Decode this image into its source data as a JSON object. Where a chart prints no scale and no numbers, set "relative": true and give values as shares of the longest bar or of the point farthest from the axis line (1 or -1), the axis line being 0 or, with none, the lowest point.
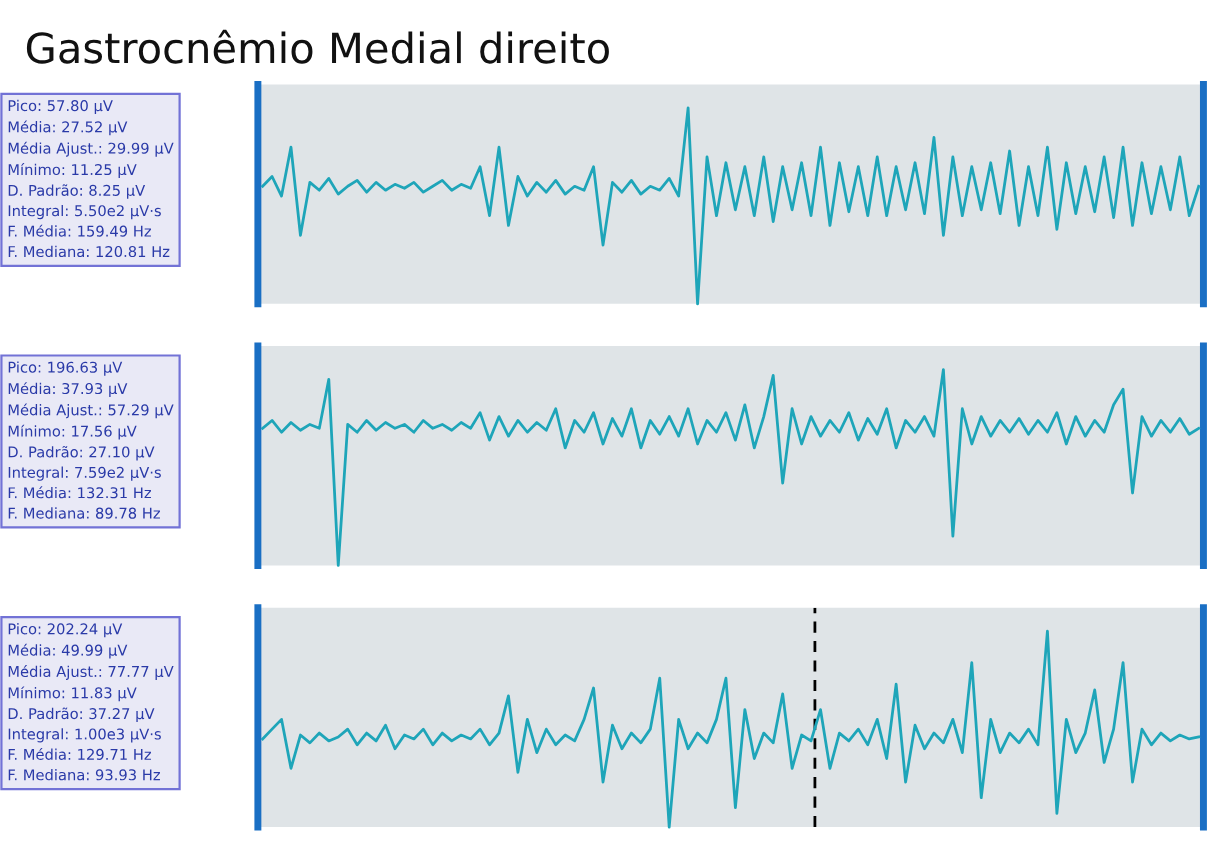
{
  "chart_data": [
    {
      "type": "line",
      "title": "Gastrocnêmio Medial direito",
      "relative": true,
      "grid": false,
      "categories": [
        null,
        null,
        null,
        null,
        null,
        null,
        null,
        null,
        null,
        null,
        null,
        null,
        null,
        null,
        null,
        null,
        null,
        null,
        null,
        null,
        null,
        null,
        null,
        null,
        null,
        null,
        null,
        null,
        null,
        null,
        null,
        null,
        null,
        null,
        null,
        null,
        null,
        null,
        null,
        null,
        null,
        null,
        null,
        null,
        null,
        null,
        null,
        null,
        null,
        null,
        null,
        null,
        null,
        null,
        null,
        null,
        null,
        null,
        null,
        null,
        null,
        null,
        null,
        null,
        null,
        null,
        null,
        null,
        null,
        null,
        null,
        null,
        null,
        null,
        null,
        null,
        null,
        null,
        null,
        null,
        null,
        null,
        null,
        null,
        null,
        null,
        null,
        null,
        null,
        null,
        null,
        null,
        null,
        null,
        null,
        null,
        null,
        null,
        null,
        null
      ],
      "series": [
        {
          "color": "#1ea5b9",
          "values": [
            0.6,
            0.65,
            0.55,
            0.8,
            0.35,
            0.62,
            0.58,
            0.64,
            0.56,
            0.6,
            0.63,
            0.57,
            0.62,
            0.58,
            0.61,
            0.59,
            0.62,
            0.57,
            0.6,
            0.63,
            0.58,
            0.61,
            0.59,
            0.7,
            0.45,
            0.8,
            0.4,
            0.65,
            0.55,
            0.62,
            0.57,
            0.63,
            0.56,
            0.6,
            0.58,
            0.7,
            0.3,
            0.62,
            0.57,
            0.63,
            0.56,
            0.6,
            0.58,
            0.64,
            0.55,
            1.0,
            0.0,
            0.75,
            0.45,
            0.72,
            0.48,
            0.7,
            0.45,
            0.75,
            0.42,
            0.7,
            0.48,
            0.72,
            0.45,
            0.8,
            0.4,
            0.72,
            0.47,
            0.7,
            0.45,
            0.75,
            0.45,
            0.7,
            0.48,
            0.72,
            0.46,
            0.85,
            0.35,
            0.75,
            0.45,
            0.7,
            0.48,
            0.72,
            0.46,
            0.78,
            0.4,
            0.7,
            0.45,
            0.8,
            0.38,
            0.72,
            0.46,
            0.7,
            0.47,
            0.75,
            0.44,
            0.8,
            0.4,
            0.72,
            0.46,
            0.7,
            0.48,
            0.75,
            0.45,
            0.6
          ]
        }
      ],
      "annotations": [
        "Pico: 57.80 μV",
        "Média: 27.52 μV",
        "Média Ajust.: 29.99 μV",
        "Mínimo: 11.25 μV",
        "D. Padrão: 8.25 μV",
        "Integral: 5.50e2 μV·s",
        "F. Média: 159.49 Hz",
        "F. Mediana: 120.81 Hz"
      ]
    },
    {
      "type": "line",
      "relative": true,
      "grid": false,
      "categories": [
        null,
        null,
        null,
        null,
        null,
        null,
        null,
        null,
        null,
        null,
        null,
        null,
        null,
        null,
        null,
        null,
        null,
        null,
        null,
        null,
        null,
        null,
        null,
        null,
        null,
        null,
        null,
        null,
        null,
        null,
        null,
        null,
        null,
        null,
        null,
        null,
        null,
        null,
        null,
        null,
        null,
        null,
        null,
        null,
        null,
        null,
        null,
        null,
        null,
        null,
        null,
        null,
        null,
        null,
        null,
        null,
        null,
        null,
        null,
        null,
        null,
        null,
        null,
        null,
        null,
        null,
        null,
        null,
        null,
        null,
        null,
        null,
        null,
        null,
        null,
        null,
        null,
        null,
        null,
        null,
        null,
        null,
        null,
        null,
        null,
        null,
        null,
        null,
        null,
        null,
        null,
        null,
        null,
        null,
        null,
        null,
        null,
        null,
        null,
        null
      ],
      "series": [
        {
          "color": "#1ea5b9",
          "values": [
            0.7,
            0.74,
            0.68,
            0.73,
            0.69,
            0.72,
            0.7,
            0.95,
            0.0,
            0.72,
            0.68,
            0.74,
            0.69,
            0.73,
            0.7,
            0.72,
            0.68,
            0.74,
            0.7,
            0.72,
            0.69,
            0.73,
            0.7,
            0.78,
            0.64,
            0.76,
            0.66,
            0.74,
            0.68,
            0.73,
            0.69,
            0.8,
            0.6,
            0.74,
            0.68,
            0.78,
            0.62,
            0.75,
            0.66,
            0.8,
            0.6,
            0.74,
            0.67,
            0.76,
            0.66,
            0.8,
            0.62,
            0.74,
            0.68,
            0.78,
            0.64,
            0.82,
            0.6,
            0.76,
            0.97,
            0.42,
            0.8,
            0.62,
            0.76,
            0.66,
            0.74,
            0.68,
            0.78,
            0.64,
            0.75,
            0.67,
            0.8,
            0.6,
            0.74,
            0.68,
            0.76,
            0.66,
            1.0,
            0.15,
            0.8,
            0.62,
            0.76,
            0.66,
            0.74,
            0.68,
            0.75,
            0.67,
            0.74,
            0.68,
            0.78,
            0.62,
            0.76,
            0.66,
            0.74,
            0.68,
            0.82,
            0.9,
            0.37,
            0.76,
            0.66,
            0.74,
            0.68,
            0.75,
            0.67,
            0.7
          ]
        }
      ],
      "annotations": [
        "Pico: 196.63 μV",
        "Média: 37.93 μV",
        "Média Ajust.: 57.29 μV",
        "Mínimo: 17.56 μV",
        "D. Padrão: 27.10 μV",
        "Integral: 7.59e2 μV·s",
        "F. Média: 132.31 Hz",
        "F. Mediana: 89.78 Hz"
      ]
    },
    {
      "type": "line",
      "relative": true,
      "grid": false,
      "categories": [
        null,
        null,
        null,
        null,
        null,
        null,
        null,
        null,
        null,
        null,
        null,
        null,
        null,
        null,
        null,
        null,
        null,
        null,
        null,
        null,
        null,
        null,
        null,
        null,
        null,
        null,
        null,
        null,
        null,
        null,
        null,
        null,
        null,
        null,
        null,
        null,
        null,
        null,
        null,
        null,
        null,
        null,
        null,
        null,
        null,
        null,
        null,
        null,
        null,
        null,
        null,
        null,
        null,
        null,
        null,
        null,
        null,
        null,
        null,
        null,
        null,
        null,
        null,
        null,
        null,
        null,
        null,
        null,
        null,
        null,
        null,
        null,
        null,
        null,
        null,
        null,
        null,
        null,
        null,
        null,
        null,
        null,
        null,
        null,
        null,
        null,
        null,
        null,
        null,
        null,
        null,
        null,
        null,
        null,
        null,
        null,
        null,
        null,
        null,
        null
      ],
      "series": [
        {
          "color": "#1ea5b9",
          "values": [
            0.45,
            0.5,
            0.55,
            0.3,
            0.47,
            0.43,
            0.48,
            0.44,
            0.46,
            0.5,
            0.42,
            0.48,
            0.44,
            0.52,
            0.4,
            0.47,
            0.45,
            0.5,
            0.42,
            0.48,
            0.44,
            0.47,
            0.45,
            0.5,
            0.42,
            0.48,
            0.67,
            0.28,
            0.55,
            0.38,
            0.5,
            0.42,
            0.47,
            0.44,
            0.55,
            0.71,
            0.23,
            0.52,
            0.4,
            0.48,
            0.43,
            0.5,
            0.76,
            0.0,
            0.55,
            0.4,
            0.48,
            0.43,
            0.55,
            0.76,
            0.1,
            0.6,
            0.35,
            0.48,
            0.43,
            0.68,
            0.3,
            0.47,
            0.44,
            0.6,
            0.3,
            0.48,
            0.44,
            0.5,
            0.42,
            0.55,
            0.35,
            0.73,
            0.23,
            0.52,
            0.4,
            0.48,
            0.43,
            0.55,
            0.38,
            0.84,
            0.15,
            0.55,
            0.38,
            0.48,
            0.43,
            0.5,
            0.42,
            1.0,
            0.07,
            0.55,
            0.38,
            0.48,
            0.7,
            0.33,
            0.5,
            0.84,
            0.23,
            0.5,
            0.42,
            0.48,
            0.44,
            0.47,
            0.45,
            0.46
          ]
        }
      ],
      "annotations": [
        "Pico: 202.24 μV",
        "Média: 49.99 μV",
        "Média Ajust.: 77.77 μV",
        "Mínimo: 11.83 μV",
        "D. Padrão: 37.27 μV",
        "Integral: 1.00e3 μV·s",
        "F. Média: 129.71 Hz",
        "F. Mediana: 93.93 Hz"
      ]
    }
  ]
}
